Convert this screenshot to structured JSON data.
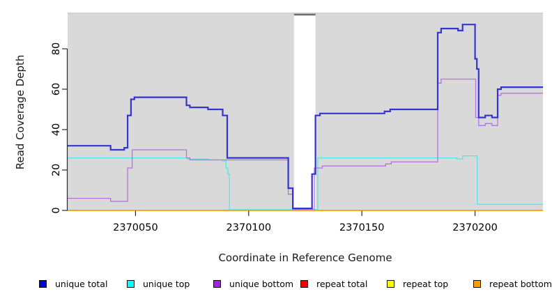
{
  "figure": {
    "x_label": "Coordinate in Reference Genome",
    "y_label": "Read Coverage Depth"
  },
  "chart_data": {
    "type": "line",
    "line_style": "step",
    "title": "",
    "xlabel": "Coordinate in Reference Genome",
    "ylabel": "Read Coverage Depth",
    "xlim": [
      2370020,
      2370230
    ],
    "ylim": [
      0,
      97.25
    ],
    "x_ticks": [
      2370050,
      2370100,
      2370150,
      2370200
    ],
    "y_ticks": [
      0,
      20,
      40,
      60,
      80
    ],
    "grid": false,
    "panel_background": "#d9d9d9",
    "panel_top_border": "#c4c4c4",
    "masked_gap": {
      "x_start": 2370120,
      "x_end": 2370129.5,
      "fill": "#ffffff",
      "top_border": "#6e6e6e"
    },
    "series": [
      {
        "name": "repeat total",
        "color": "#ee0000",
        "line_width": 1.3,
        "points": [
          [
            2370020,
            0
          ]
        ]
      },
      {
        "name": "repeat top",
        "color": "#ffff00",
        "line_width": 1.3,
        "points": [
          [
            2370020,
            0
          ]
        ]
      },
      {
        "name": "repeat bottom",
        "color": "#ff9d00",
        "line_width": 1.6,
        "points": [
          [
            2370020,
            0
          ]
        ]
      },
      {
        "name": "unique top",
        "color": "#55e6e8",
        "line_width": 1.3,
        "points": [
          [
            2370020,
            26
          ],
          [
            2370073,
            25.5
          ],
          [
            2370082,
            25
          ],
          [
            2370088.5,
            24.5
          ],
          [
            2370090,
            21
          ],
          [
            2370090.8,
            18
          ],
          [
            2370091.5,
            0.4
          ],
          [
            2370130.5,
            26
          ],
          [
            2370192,
            25.5
          ],
          [
            2370194.5,
            27
          ],
          [
            2370201,
            3
          ]
        ]
      },
      {
        "name": "unique bottom",
        "color": "#b272e2",
        "line_width": 1.3,
        "points": [
          [
            2370020,
            6
          ],
          [
            2370039,
            4.5
          ],
          [
            2370046.5,
            21
          ],
          [
            2370048.5,
            30
          ],
          [
            2370072.5,
            26
          ],
          [
            2370074,
            25
          ],
          [
            2370117.5,
            8
          ],
          [
            2370119.5,
            0.6
          ],
          [
            2370129,
            21
          ],
          [
            2370132.5,
            22
          ],
          [
            2370160.5,
            23
          ],
          [
            2370163,
            24
          ],
          [
            2370183.5,
            63
          ],
          [
            2370185,
            65
          ],
          [
            2370200.3,
            46
          ],
          [
            2370201.6,
            42
          ],
          [
            2370204.5,
            43
          ],
          [
            2370207.5,
            42
          ],
          [
            2370210,
            57
          ],
          [
            2370211.5,
            58
          ]
        ]
      },
      {
        "name": "unique total",
        "color": "#3434d1",
        "line_width": 2.2,
        "points": [
          [
            2370020,
            32
          ],
          [
            2370039,
            30
          ],
          [
            2370045,
            31
          ],
          [
            2370046.5,
            47
          ],
          [
            2370048,
            55
          ],
          [
            2370049.5,
            56
          ],
          [
            2370072.5,
            52
          ],
          [
            2370074,
            51
          ],
          [
            2370082,
            50
          ],
          [
            2370088.5,
            47
          ],
          [
            2370090.5,
            26
          ],
          [
            2370117.5,
            11
          ],
          [
            2370119.5,
            1
          ],
          [
            2370128,
            18
          ],
          [
            2370129.5,
            47
          ],
          [
            2370131.5,
            48
          ],
          [
            2370160,
            49
          ],
          [
            2370162.5,
            50
          ],
          [
            2370183.5,
            88
          ],
          [
            2370185,
            90
          ],
          [
            2370192.5,
            89
          ],
          [
            2370194.5,
            92
          ],
          [
            2370200,
            75
          ],
          [
            2370200.8,
            70
          ],
          [
            2370201.6,
            46
          ],
          [
            2370204.5,
            47
          ],
          [
            2370207.5,
            46
          ],
          [
            2370210,
            60
          ],
          [
            2370211.5,
            61
          ]
        ]
      }
    ],
    "legend_position": "bottom",
    "legend": [
      {
        "label": "unique total",
        "color": "#0000e0"
      },
      {
        "label": "unique top",
        "color": "#00ffff"
      },
      {
        "label": "unique bottom",
        "color": "#a020f0"
      },
      {
        "label": "repeat total",
        "color": "#ee0000"
      },
      {
        "label": "repeat top",
        "color": "#ffff00"
      },
      {
        "label": "repeat bottom",
        "color": "#ff9900"
      }
    ]
  }
}
